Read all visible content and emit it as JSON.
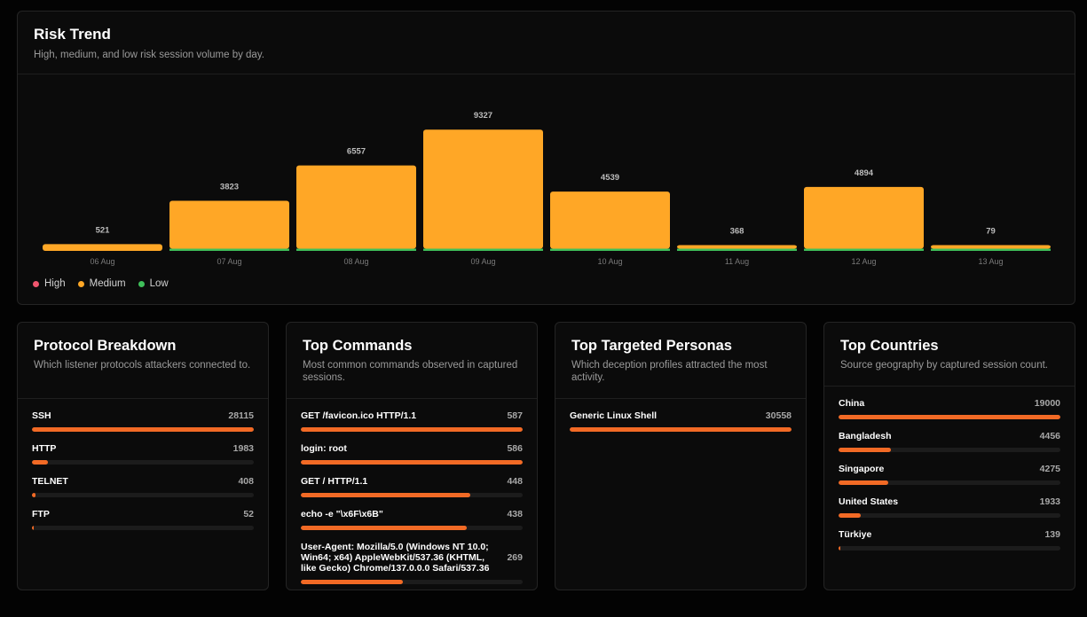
{
  "risk_trend": {
    "title": "Risk Trend",
    "subtitle": "High, medium, and low risk session volume by day.",
    "legend": [
      {
        "label": "High",
        "color": "#f0566e"
      },
      {
        "label": "Medium",
        "color": "#ffa726"
      },
      {
        "label": "Low",
        "color": "#3fbf5a"
      }
    ]
  },
  "chart_data": {
    "type": "bar",
    "stacked": true,
    "categories": [
      "06 Aug",
      "07 Aug",
      "08 Aug",
      "09 Aug",
      "10 Aug",
      "11 Aug",
      "12 Aug",
      "13 Aug"
    ],
    "totals": [
      521,
      3823,
      6557,
      9327,
      4539,
      368,
      4894,
      79
    ],
    "series": [
      {
        "name": "High",
        "color": "#f0566e",
        "values": [
          0,
          0,
          0,
          0,
          0,
          0,
          0,
          0
        ]
      },
      {
        "name": "Medium",
        "color": "#ffa726",
        "values": [
          521,
          3703,
          6437,
          9207,
          4419,
          248,
          4774,
          19
        ]
      },
      {
        "name": "Low",
        "color": "#3fbf5a",
        "values": [
          0,
          120,
          120,
          120,
          120,
          120,
          120,
          60
        ]
      }
    ],
    "ylim": [
      0,
      9327
    ],
    "grid": false,
    "legend_position": "bottom-left"
  },
  "protocols": {
    "title": "Protocol Breakdown",
    "subtitle": "Which listener protocols attackers connected to.",
    "items": [
      {
        "label": "SSH",
        "value": 28115,
        "fraction": 1.0
      },
      {
        "label": "HTTP",
        "value": 1983,
        "fraction": 0.0705
      },
      {
        "label": "TELNET",
        "value": 408,
        "fraction": 0.0145
      },
      {
        "label": "FTP",
        "value": 52,
        "fraction": 0.0018
      }
    ]
  },
  "commands": {
    "title": "Top Commands",
    "subtitle": "Most common commands observed in captured sessions.",
    "items": [
      {
        "label": "GET /favicon.ico HTTP/1.1",
        "value": 587,
        "fraction": 1.0
      },
      {
        "label": "login: root",
        "value": 586,
        "fraction": 0.998
      },
      {
        "label": "GET / HTTP/1.1",
        "value": 448,
        "fraction": 0.763
      },
      {
        "label": "echo -e \"\\x6F\\x6B\"",
        "value": 438,
        "fraction": 0.746
      },
      {
        "label": "User-Agent: Mozilla/5.0 (Windows NT 10.0; Win64; x64) AppleWebKit/537.36 (KHTML, like Gecko) Chrome/137.0.0.0 Safari/537.36",
        "value": 269,
        "fraction": 0.458
      }
    ]
  },
  "personas": {
    "title": "Top Targeted Personas",
    "subtitle": "Which deception profiles attracted the most activity.",
    "items": [
      {
        "label": "Generic Linux Shell",
        "value": 30558,
        "fraction": 1.0
      }
    ]
  },
  "countries": {
    "title": "Top Countries",
    "subtitle": "Source geography by captured session count.",
    "items": [
      {
        "label": "China",
        "value": 19000,
        "fraction": 1.0
      },
      {
        "label": "Bangladesh",
        "value": 4456,
        "fraction": 0.2345
      },
      {
        "label": "Singapore",
        "value": 4275,
        "fraction": 0.225
      },
      {
        "label": "United States",
        "value": 1933,
        "fraction": 0.1017
      },
      {
        "label": "Türkiye",
        "value": 139,
        "fraction": 0.0073
      }
    ]
  }
}
